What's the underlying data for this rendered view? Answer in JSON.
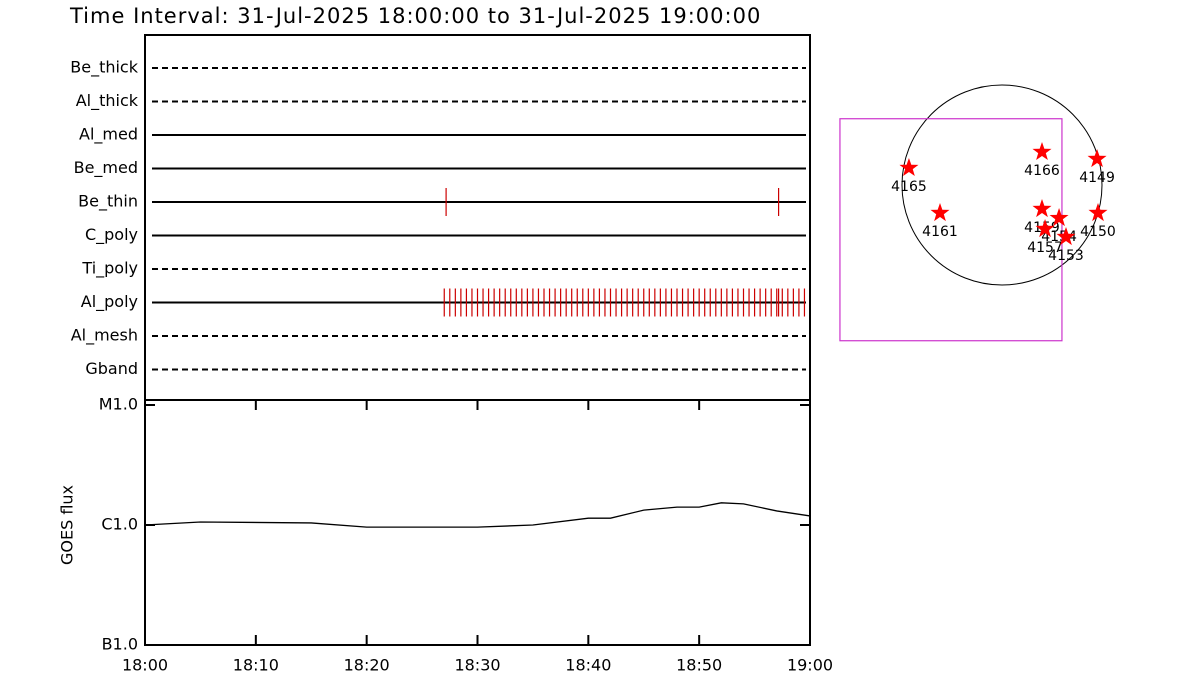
{
  "chart_data": [
    {
      "type": "timeline",
      "title": "Time Interval: 31-Jul-2025 18:00:00 to 31-Jul-2025 19:00:00",
      "xlim": [
        "18:00",
        "19:00"
      ],
      "color": "#cc0000",
      "series": [
        {
          "name": "Be_thick",
          "style": "dashed",
          "events": []
        },
        {
          "name": "Al_thick",
          "style": "dashed",
          "events": []
        },
        {
          "name": "Al_med",
          "style": "solid",
          "events": []
        },
        {
          "name": "Be_med",
          "style": "solid",
          "events": []
        },
        {
          "name": "Be_thin",
          "style": "solid",
          "events": [
            "18:27:10",
            "18:57:10"
          ]
        },
        {
          "name": "C_poly",
          "style": "solid",
          "events": []
        },
        {
          "name": "Ti_poly",
          "style": "dashed",
          "events": []
        },
        {
          "name": "Al_poly",
          "style": "solid",
          "events": [
            "18:27:00",
            "18:27:30",
            "18:28:00",
            "18:28:30",
            "18:29:00",
            "18:29:30",
            "18:30:00",
            "18:30:30",
            "18:31:00",
            "18:31:30",
            "18:32:00",
            "18:32:30",
            "18:33:00",
            "18:33:30",
            "18:34:00",
            "18:34:30",
            "18:35:00",
            "18:35:30",
            "18:36:00",
            "18:36:30",
            "18:37:00",
            "18:37:30",
            "18:38:00",
            "18:38:30",
            "18:39:00",
            "18:39:30",
            "18:40:00",
            "18:40:30",
            "18:41:00",
            "18:41:30",
            "18:42:00",
            "18:42:30",
            "18:43:00",
            "18:43:30",
            "18:44:00",
            "18:44:30",
            "18:45:00",
            "18:45:30",
            "18:46:00",
            "18:46:30",
            "18:47:00",
            "18:47:30",
            "18:48:00",
            "18:48:30",
            "18:49:00",
            "18:49:30",
            "18:50:00",
            "18:50:30",
            "18:51:00",
            "18:51:30",
            "18:52:00",
            "18:52:30",
            "18:53:00",
            "18:53:30",
            "18:54:00",
            "18:54:30",
            "18:55:00",
            "18:55:30",
            "18:56:00",
            "18:56:30",
            "18:57:00",
            "18:57:10",
            "18:57:30",
            "18:58:00",
            "18:58:30",
            "18:59:00",
            "18:59:30"
          ]
        },
        {
          "name": "Al_mesh",
          "style": "dashed",
          "events": []
        },
        {
          "name": "Gband",
          "style": "dashed",
          "events": []
        }
      ]
    },
    {
      "type": "line",
      "ylabel": "GOES flux",
      "x": [
        "18:00",
        "18:05",
        "18:15",
        "18:20",
        "18:30",
        "18:35",
        "18:40",
        "18:42",
        "18:45",
        "18:48",
        "18:50",
        "18:52",
        "18:54",
        "18:57",
        "19:00"
      ],
      "values": [
        1e-06,
        1.06e-06,
        1.04e-06,
        9.6e-07,
        9.6e-07,
        1e-06,
        1.14e-06,
        1.14e-06,
        1.33e-06,
        1.41e-06,
        1.41e-06,
        1.53e-06,
        1.5e-06,
        1.31e-06,
        1.19e-06
      ],
      "color": "#000000",
      "log_y": true,
      "ylim": [
        1e-07,
        1e-05
      ],
      "yticks": [
        {
          "value": 1e-07,
          "label": "B1.0"
        },
        {
          "value": 1e-06,
          "label": "C1.0"
        },
        {
          "value": 1e-05,
          "label": "M1.0"
        }
      ],
      "xlim": [
        "18:00",
        "19:00"
      ],
      "xticks": [
        "18:00",
        "18:10",
        "18:20",
        "18:30",
        "18:40",
        "18:50",
        "19:00"
      ]
    },
    {
      "type": "map",
      "sun_radius": 950,
      "fov": {
        "x": -485,
        "y": -425,
        "width": 2109,
        "height": 2109
      },
      "fov_color": "#cc33cc",
      "color": "#ff0000",
      "x": [
        -884,
        380,
        903,
        -589,
        380,
        542,
        409,
        608,
        912
      ],
      "y": [
        162,
        314,
        247,
        -266,
        -228,
        -314,
        -418,
        -494,
        -266
      ],
      "labels": [
        "4165",
        "4166",
        "4149",
        "4161",
        "4159",
        "4154",
        "4157",
        "4153",
        "4150"
      ]
    }
  ]
}
